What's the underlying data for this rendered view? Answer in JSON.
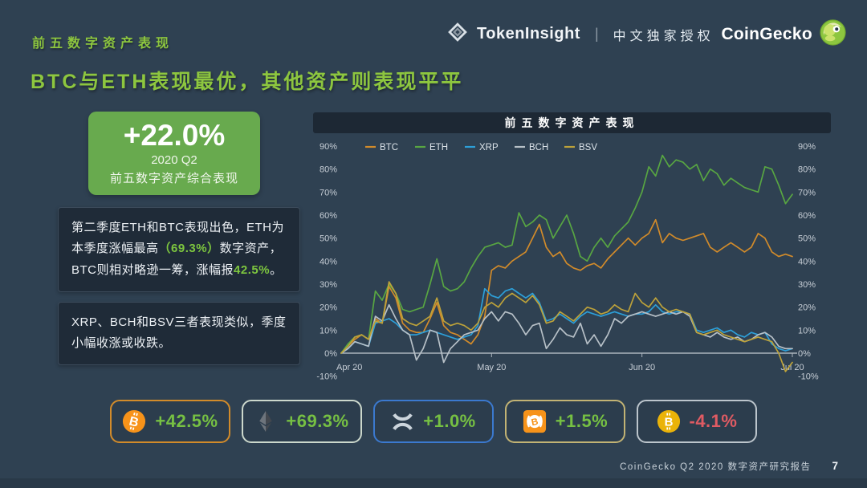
{
  "header": {
    "eyebrow": "前五数字资产表现",
    "headline": "BTC与ETH表现最优，其他资产则表现平平",
    "brand_left_name": "TokenInsight",
    "brand_separator": "|",
    "brand_tagline": "中文独家授权",
    "brand_right_name": "CoinGecko"
  },
  "summary": {
    "value": "+22.0%",
    "period": "2020 Q2",
    "label": "前五数字资产综合表现"
  },
  "notes": {
    "note1_segments": [
      {
        "text": "第二季度ETH和BTC表现出色，ETH为本季度涨幅最高",
        "highlight": false
      },
      {
        "text": "（69.3%）",
        "highlight": true
      },
      {
        "text": "数字资产，BTC则相对略逊一筹，涨幅报",
        "highlight": false
      },
      {
        "text": "42.5%",
        "highlight": true
      },
      {
        "text": "。",
        "highlight": false
      }
    ],
    "note2": "XRP、BCH和BSV三者表现类似，季度小幅收涨或收跌。"
  },
  "chart_data": {
    "type": "line",
    "title": "前五数字资产表现",
    "x_ticks": [
      "Apr 20",
      "May 20",
      "Jun 20",
      "Jul 20"
    ],
    "y_ticks": [
      "90%",
      "80%",
      "70%",
      "60%",
      "50%",
      "40%",
      "30%",
      "20%",
      "10%",
      "0%",
      "-10%"
    ],
    "ylim": [
      -10,
      90
    ],
    "grid": false,
    "legend_position": "top-left",
    "unit": "percent_change",
    "series": [
      {
        "name": "BTC",
        "color": "#d28b2a",
        "quarter_change": 42.5,
        "values": [
          0,
          3,
          6,
          8,
          6,
          15,
          13,
          29,
          24,
          13,
          10,
          9,
          9,
          15,
          22,
          12,
          9,
          8,
          6,
          4,
          8,
          16,
          36,
          38,
          37,
          40,
          42,
          44,
          50,
          56,
          46,
          42,
          44,
          39,
          37,
          36,
          38,
          39,
          37,
          41,
          44,
          47,
          50,
          47,
          50,
          52,
          58,
          48,
          52,
          50,
          49,
          50,
          51,
          52,
          46,
          44,
          46,
          48,
          46,
          44,
          46,
          52,
          50,
          44,
          42,
          43,
          42
        ]
      },
      {
        "name": "ETH",
        "color": "#58a642",
        "quarter_change": 69.3,
        "values": [
          0,
          4,
          7,
          8,
          6,
          27,
          23,
          30,
          26,
          19,
          18,
          19,
          20,
          30,
          41,
          29,
          27,
          28,
          31,
          37,
          42,
          46,
          47,
          48,
          46,
          47,
          61,
          55,
          57,
          60,
          58,
          50,
          55,
          60,
          52,
          42,
          40,
          46,
          50,
          46,
          51,
          54,
          57,
          63,
          70,
          81,
          77,
          86,
          81,
          84,
          83,
          80,
          82,
          75,
          80,
          78,
          73,
          76,
          74,
          72,
          71,
          70,
          81,
          80,
          73,
          65,
          69
        ]
      },
      {
        "name": "XRP",
        "color": "#2d9fd8",
        "quarter_change": 1.0,
        "values": [
          0,
          2,
          5,
          4,
          3,
          13,
          14,
          15,
          13,
          10,
          8,
          8,
          9,
          10,
          9,
          8,
          7,
          6,
          7,
          8,
          12,
          28,
          25,
          24,
          27,
          28,
          26,
          24,
          26,
          22,
          14,
          15,
          17,
          15,
          13,
          16,
          18,
          17,
          16,
          17,
          18,
          17,
          16,
          17,
          17,
          18,
          21,
          18,
          17,
          18,
          18,
          17,
          10,
          9,
          10,
          11,
          9,
          10,
          8,
          7,
          9,
          8,
          9,
          4,
          2,
          1,
          2
        ]
      },
      {
        "name": "BCH",
        "color": "#b7c0c7",
        "quarter_change": 1.5,
        "values": [
          0,
          2,
          5,
          4,
          3,
          16,
          14,
          21,
          15,
          10,
          8,
          -3,
          2,
          10,
          9,
          -4,
          2,
          5,
          8,
          9,
          10,
          15,
          18,
          14,
          18,
          17,
          13,
          8,
          12,
          13,
          2,
          6,
          11,
          8,
          7,
          13,
          4,
          8,
          3,
          8,
          15,
          13,
          16,
          17,
          18,
          17,
          16,
          17,
          18,
          17,
          18,
          16,
          9,
          8,
          7,
          9,
          7,
          6,
          7,
          5,
          6,
          8,
          9,
          7,
          3,
          2,
          2
        ]
      },
      {
        "name": "BSV",
        "color": "#bda23a",
        "quarter_change": -4.1,
        "values": [
          0,
          3,
          7,
          8,
          6,
          14,
          13,
          31,
          26,
          15,
          13,
          12,
          14,
          16,
          24,
          14,
          12,
          13,
          12,
          10,
          13,
          20,
          22,
          20,
          24,
          26,
          24,
          22,
          25,
          21,
          13,
          14,
          18,
          16,
          14,
          17,
          20,
          19,
          17,
          18,
          21,
          19,
          18,
          26,
          22,
          20,
          24,
          20,
          18,
          19,
          18,
          17,
          9,
          8,
          9,
          10,
          8,
          7,
          6,
          5,
          6,
          7,
          6,
          5,
          0,
          -8,
          -4
        ]
      }
    ]
  },
  "badges": [
    {
      "coin": "BTC",
      "change": "+42.5%",
      "trend": "up",
      "border": "#d28b2a",
      "icon": "btc-icon"
    },
    {
      "coin": "ETH",
      "change": "+69.3%",
      "trend": "up",
      "border": "#ccd8cc",
      "icon": "eth-icon"
    },
    {
      "coin": "XRP",
      "change": "+1.0%",
      "trend": "up",
      "border": "#3b79cf",
      "icon": "xrp-icon"
    },
    {
      "coin": "BCH",
      "change": "+1.5%",
      "trend": "up",
      "border": "#c2b374",
      "icon": "bch-icon"
    },
    {
      "coin": "BSV",
      "change": "-4.1%",
      "trend": "down",
      "border": "#bcc5cc",
      "icon": "bsv-icon"
    }
  ],
  "footer": {
    "text": "CoinGecko Q2 2020 数字资产研究报告",
    "page": "7"
  },
  "colors": {
    "background": "#2f4152",
    "accent_green": "#8dc63f",
    "kpi_bg": "#68aa4e",
    "panel_bg": "#1f2b38",
    "chart_titlebar": "#1d2834",
    "up": "#76c043",
    "down": "#e05b63",
    "axis_text": "#c7ced6"
  }
}
